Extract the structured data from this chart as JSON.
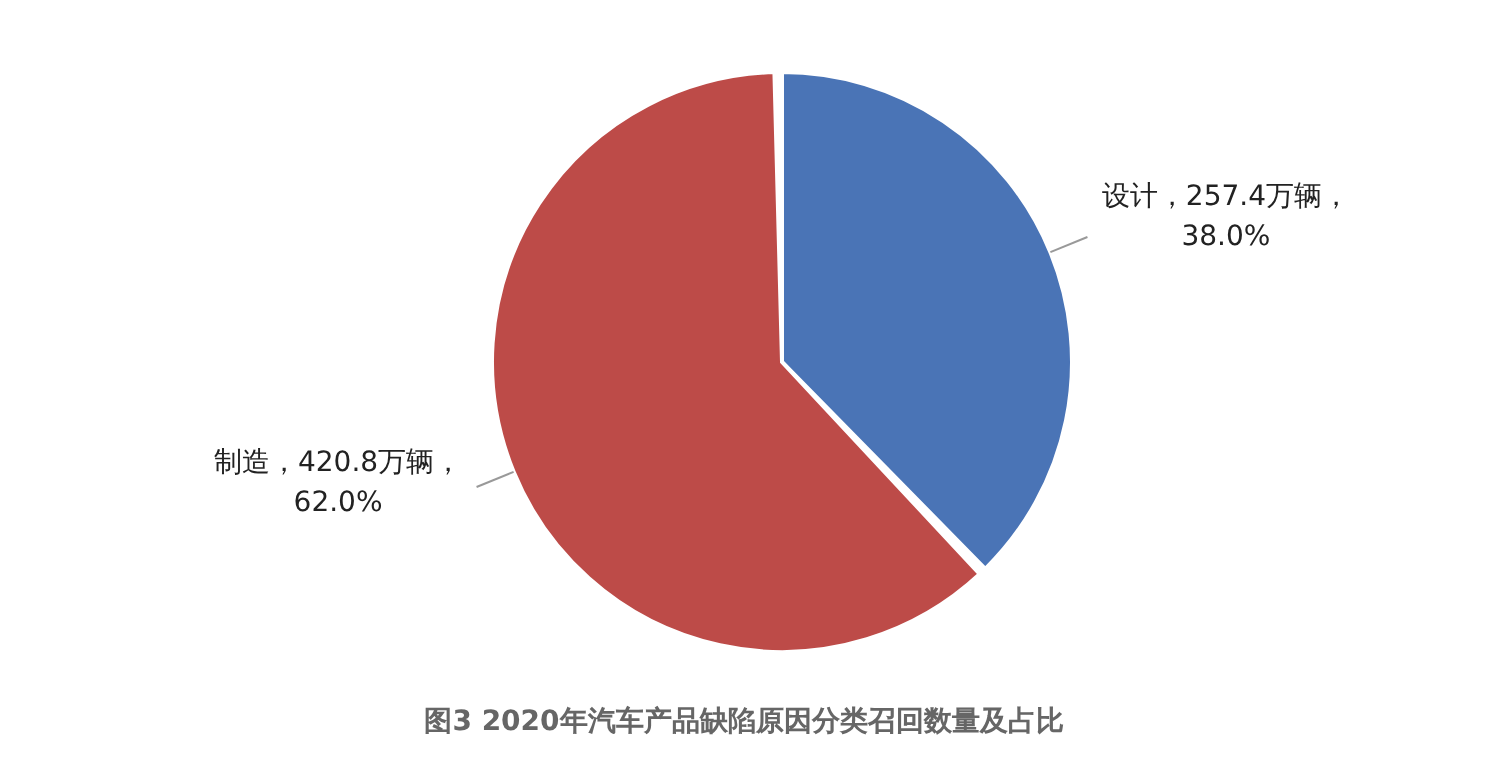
{
  "chart_data": {
    "type": "pie",
    "title": "图3 2020年汽车产品缺陷原因分类召回数量及占比",
    "categories": [
      "设计",
      "制造"
    ],
    "values": [
      257.4,
      420.8
    ],
    "colors": [
      "#4a74b6",
      "#bd4b48"
    ],
    "value_labels": [
      "，257.4万辆，\n38.0%",
      "，420.8万辆，\n62.0%"
    ],
    "legend": false
  }
}
